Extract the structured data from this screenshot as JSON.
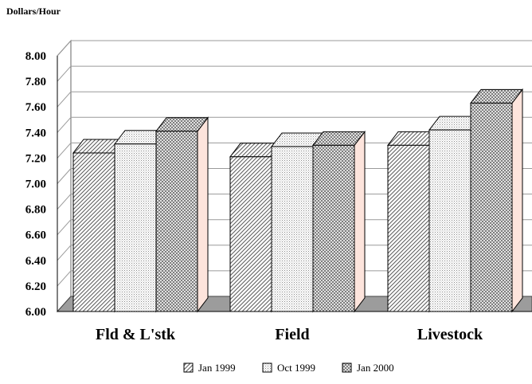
{
  "chart_data": {
    "type": "bar",
    "title": "",
    "ylabel": "Dollars/Hour",
    "xlabel": "",
    "ylim": [
      6.0,
      8.0
    ],
    "yticks": [
      "6.00",
      "6.20",
      "6.40",
      "6.60",
      "6.80",
      "7.00",
      "7.20",
      "7.40",
      "7.60",
      "7.80",
      "8.00"
    ],
    "grid": true,
    "legend_position": "bottom",
    "categories": [
      "Fld & L'stk",
      "Field",
      "Livestock"
    ],
    "series": [
      {
        "name": "Jan 1999",
        "values": [
          7.24,
          7.21,
          7.3
        ],
        "pattern": "diagonal-hatch"
      },
      {
        "name": "Oct 1999",
        "values": [
          7.31,
          7.29,
          7.42
        ],
        "pattern": "fine-dots"
      },
      {
        "name": "Jan 2000",
        "values": [
          7.41,
          7.3,
          7.63
        ],
        "pattern": "crosshatch"
      }
    ],
    "colors": {
      "bar_front": "#ffffff",
      "bar_side": "#fde4dc",
      "bar_top": "#ffffff",
      "wall": "#ffffff",
      "floor": "#9c9c9c",
      "grid": "#9a9a9a",
      "outline": "#000000"
    }
  }
}
